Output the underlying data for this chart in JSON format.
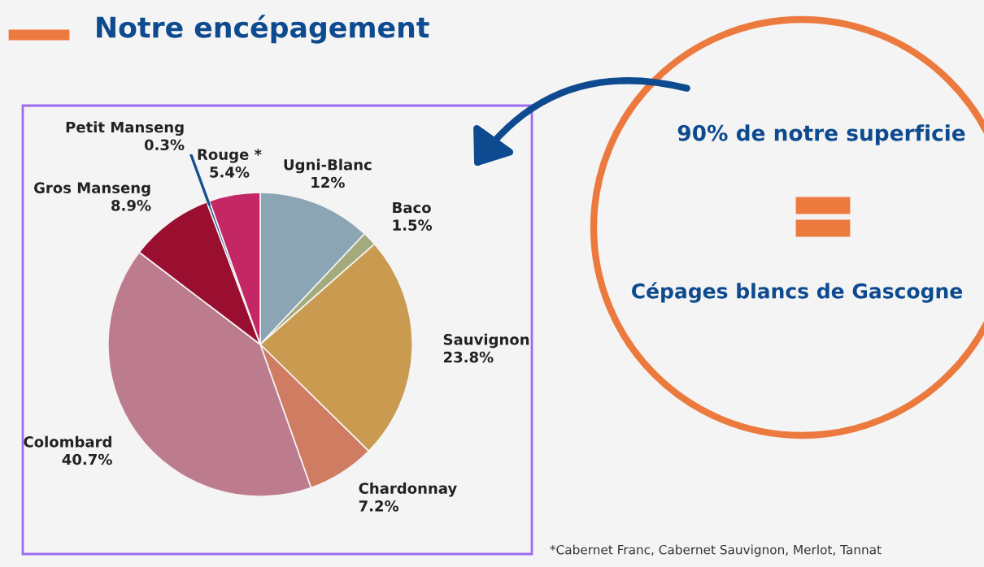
{
  "chart_data": {
    "type": "pie",
    "title": "Notre encépagement",
    "categories": [
      "Ugni-Blanc",
      "Baco",
      "Sauvignon",
      "Chardonnay",
      "Colombard",
      "Gros Manseng",
      "Petit Manseng",
      "Rouge *"
    ],
    "values": [
      12,
      1.5,
      23.8,
      7.2,
      40.7,
      8.9,
      0.3,
      5.4
    ],
    "value_labels": [
      "12%",
      "1.5%",
      "23.8%",
      "7.2%",
      "40.7%",
      "8.9%",
      "0.3%",
      "5.4%"
    ],
    "colors": [
      "#8ba5b5",
      "#a3ab7c",
      "#c99a50",
      "#cf7c62",
      "#bd7c8e",
      "#9a0f30",
      "#1a4f8f",
      "#c42864"
    ],
    "annotations": [
      "90% de notre superficie",
      "Cépages blancs de Gascogne",
      "*Cabernet Franc, Cabernet Sauvignon, Merlot, Tannat"
    ]
  }
}
